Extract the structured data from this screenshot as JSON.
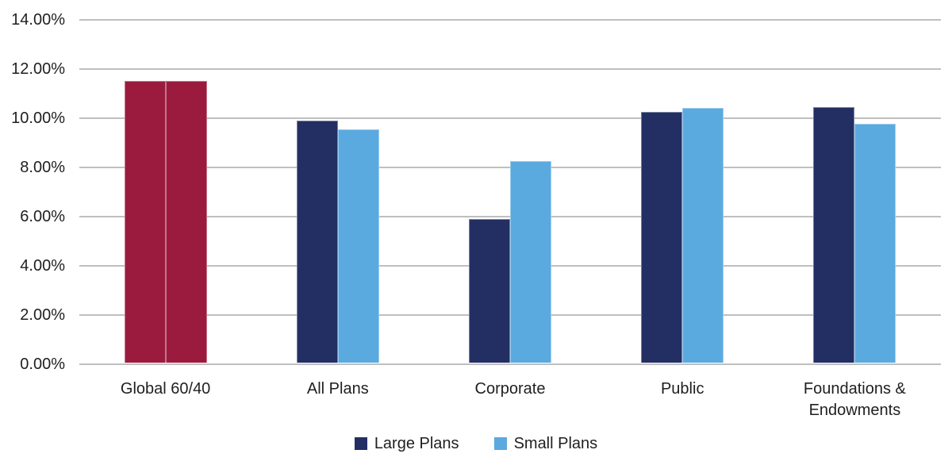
{
  "chart_data": {
    "type": "bar",
    "title": "",
    "xlabel": "",
    "ylabel": "",
    "categories": [
      "Global 60/40",
      "All Plans",
      "Corporate",
      "Public",
      "Foundations & Endowments"
    ],
    "series": [
      {
        "name": "Large Plans",
        "color": "#232F63",
        "values": [
          11.45,
          9.85,
          5.85,
          10.2,
          10.4
        ]
      },
      {
        "name": "Small Plans",
        "color": "#5AAADF",
        "values": [
          11.45,
          9.5,
          8.2,
          10.35,
          9.7
        ]
      }
    ],
    "category_color_overrides": {
      "Global 60/40": "#9B1B3F"
    },
    "ylim": [
      0,
      14
    ],
    "yticks": [
      0,
      2,
      4,
      6,
      8,
      10,
      12,
      14
    ],
    "ytick_labels": [
      "0.00%",
      "2.00%",
      "4.00%",
      "6.00%",
      "8.00%",
      "10.00%",
      "12.00%",
      "14.00%"
    ],
    "grid": true,
    "gridline_color": "#bfbfbf",
    "legend_position": "bottom"
  },
  "legend": {
    "items": [
      {
        "label": "Large Plans",
        "color": "#232F63"
      },
      {
        "label": "Small Plans",
        "color": "#5AAADF"
      }
    ]
  }
}
